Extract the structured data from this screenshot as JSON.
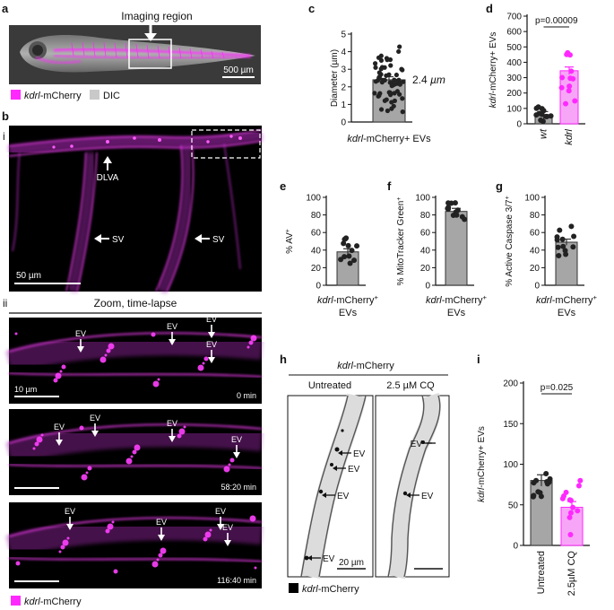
{
  "panel_labels": {
    "a": "a",
    "b": "b",
    "bi": "i",
    "bii": "ii",
    "c": "c",
    "d": "d",
    "e": "e",
    "f": "f",
    "g": "g",
    "h": "h",
    "i": "i"
  },
  "panel_a": {
    "title": "Imaging region",
    "scalebar": "500 µm",
    "legend_magenta": "kdrl-mCherry",
    "legend_gray": "DIC"
  },
  "panel_b": {
    "i_labels": {
      "dlva": "DLVA",
      "sv1": "SV",
      "sv2": "SV",
      "scalebar": "50 µm"
    },
    "zoom_title": "Zoom, time-lapse",
    "frames": [
      {
        "time": "0 min",
        "scalebar": "10 µm",
        "evs": [
          "EV",
          "EV",
          "EV",
          "EV"
        ]
      },
      {
        "time": "58:20 min",
        "evs": [
          "EV",
          "EV",
          "EV",
          "EV",
          "EV"
        ]
      },
      {
        "time": "116:40 min",
        "evs": [
          "EV",
          "EV",
          "EV",
          "EV"
        ]
      }
    ],
    "legend": "kdrl-mCherry"
  },
  "colors": {
    "magenta": "#ff29ff",
    "pink": "#f7a6f7",
    "gray": "#a6a6a6",
    "black": "#000000"
  },
  "chart_data": [
    {
      "id": "c",
      "type": "bar",
      "ylabel": "Diameter (µm)",
      "ylim": [
        0,
        5
      ],
      "yticks": [
        "0",
        "1",
        "2",
        "3",
        "4",
        "5"
      ],
      "categories": [
        "kdrl-mCherry+ EVs"
      ],
      "values": [
        2.4
      ],
      "annotation": "2.4 µm"
    },
    {
      "id": "d",
      "type": "bar",
      "ylabel": "kdrl-mCherry+ EVs",
      "ylim": [
        0,
        700
      ],
      "yticks": [
        "0",
        "100",
        "200",
        "300",
        "400",
        "500",
        "600",
        "700"
      ],
      "categories": [
        "wt",
        "kdrl"
      ],
      "values": [
        55,
        345
      ],
      "pvalue": "p=0.00009"
    },
    {
      "id": "e",
      "type": "bar",
      "ylabel": "% AV+",
      "ylim": [
        0,
        100
      ],
      "yticks": [
        "0",
        "20",
        "40",
        "60",
        "80",
        "100"
      ],
      "categories": [
        "kdrl-mCherry+ EVs"
      ],
      "values": [
        38
      ]
    },
    {
      "id": "f",
      "type": "bar",
      "ylabel": "% MitoTracker Green+",
      "ylim": [
        0,
        100
      ],
      "yticks": [
        "0",
        "20",
        "40",
        "60",
        "80",
        "100"
      ],
      "categories": [
        "kdrl-mCherry+ EVs"
      ],
      "values": [
        84
      ]
    },
    {
      "id": "g",
      "type": "bar",
      "ylabel": "% Active Caspase 3/7+",
      "ylim": [
        0,
        100
      ],
      "yticks": [
        "0",
        "20",
        "40",
        "60",
        "80",
        "100"
      ],
      "categories": [
        "kdrl-mCherry+ EVs"
      ],
      "values": [
        49
      ]
    },
    {
      "id": "i",
      "type": "bar",
      "ylabel": "kdrl-mCherry+ EVs",
      "ylim": [
        0,
        200
      ],
      "yticks": [
        "0",
        "50",
        "100",
        "150",
        "200"
      ],
      "categories": [
        "Untreated",
        "2.5µM CQ"
      ],
      "values": [
        80,
        47
      ],
      "pvalue": "p=0.025"
    }
  ],
  "panel_h": {
    "title": "kdrl-mCherry",
    "col1": "Untreated",
    "col2": "2.5 µM CQ",
    "scalebar": "20 µm",
    "legend": "kdrl-mCherry",
    "evs_untreated": [
      "EV",
      "EV",
      "EV",
      "EV"
    ],
    "evs_cq": [
      "EV",
      "EV"
    ]
  }
}
